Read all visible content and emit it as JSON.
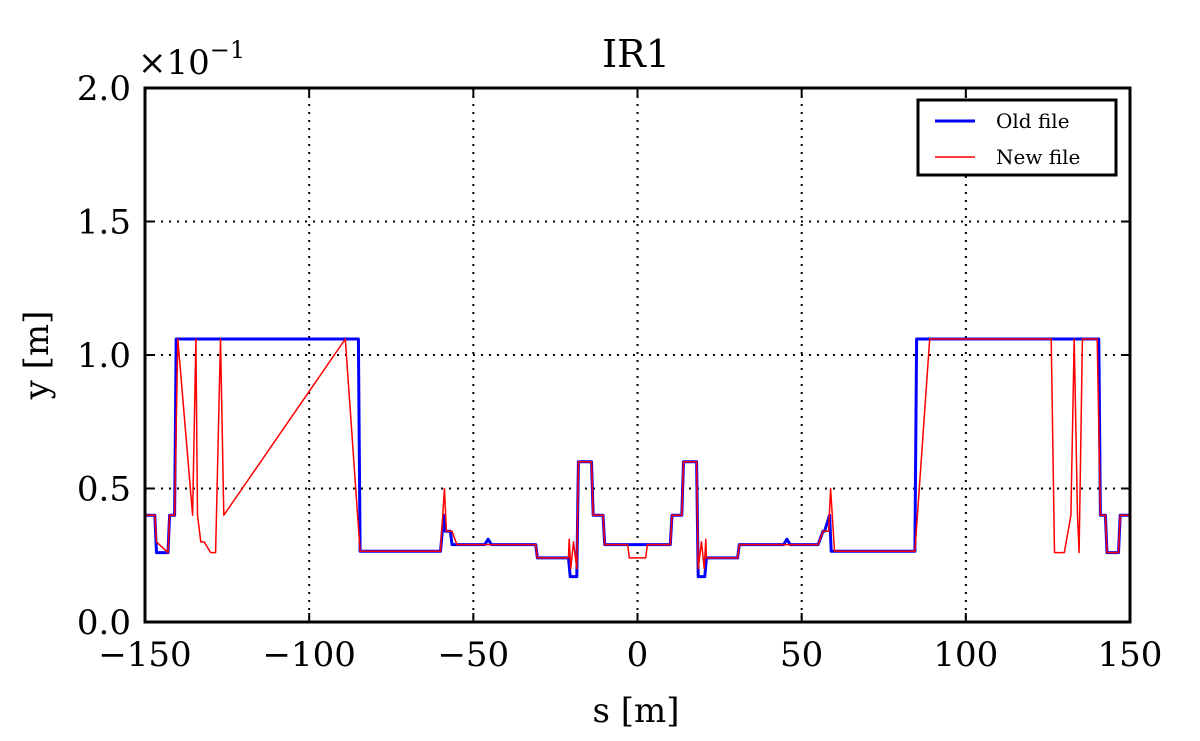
{
  "chart_data": {
    "type": "line",
    "title": "IR1",
    "xlabel": "s [m]",
    "ylabel": "y [m]",
    "y_multiplier": "×10",
    "y_multiplier_exp": "−1",
    "xlim": [
      -150,
      150
    ],
    "ylim": [
      0.0,
      2.0
    ],
    "x_ticks": [
      -150,
      -100,
      -50,
      0,
      50,
      100,
      150
    ],
    "x_tick_labels": [
      "−150",
      "−100",
      "−50",
      "0",
      "50",
      "100",
      "150"
    ],
    "y_ticks": [
      0.0,
      0.5,
      1.0,
      1.5,
      2.0
    ],
    "y_tick_labels": [
      "0.0",
      "0.5",
      "1.0",
      "1.5",
      "2.0"
    ],
    "grid": true,
    "legend_position": "top-right",
    "series": [
      {
        "name": "Old file",
        "color": "#0000ff",
        "x": [
          -150,
          -147,
          -146.5,
          -143,
          -142.5,
          -141,
          -140.5,
          -85,
          -84.5,
          -60,
          -59,
          -58.5,
          -57,
          -56.5,
          -55,
          -54.5,
          -46.5,
          -45.5,
          -44.5,
          -31,
          -30.5,
          -21,
          -20.5,
          -18.5,
          -18,
          -14,
          -13.5,
          -10.5,
          -10,
          10,
          10.5,
          13.5,
          14,
          18,
          18.5,
          20.5,
          21,
          30.5,
          31,
          44.5,
          45.5,
          46.5,
          54.5,
          55,
          56.5,
          57,
          58.5,
          59,
          60,
          84.5,
          85,
          140.5,
          141,
          142.5,
          143,
          146.5,
          147,
          150
        ],
        "y": [
          0.4,
          0.4,
          0.26,
          0.26,
          0.4,
          0.4,
          1.06,
          1.06,
          0.265,
          0.265,
          0.4,
          0.34,
          0.34,
          0.29,
          0.29,
          0.29,
          0.29,
          0.31,
          0.29,
          0.29,
          0.24,
          0.24,
          0.17,
          0.17,
          0.6,
          0.6,
          0.4,
          0.4,
          0.29,
          0.29,
          0.4,
          0.4,
          0.6,
          0.6,
          0.17,
          0.17,
          0.24,
          0.24,
          0.29,
          0.29,
          0.31,
          0.29,
          0.29,
          0.29,
          0.34,
          0.34,
          0.4,
          0.265,
          0.265,
          0.265,
          1.06,
          1.06,
          0.4,
          0.4,
          0.26,
          0.26,
          0.4,
          0.4
        ]
      },
      {
        "name": "New file",
        "color": "#ff0000",
        "x": [
          -150,
          -147,
          -146.5,
          -143,
          -142.5,
          -141,
          -140,
          -135.5,
          -134.5,
          -134,
          -133,
          -132,
          -130,
          -128.5,
          -127,
          -126,
          -89,
          -84.5,
          -60,
          -58.8,
          -58.2,
          -56.5,
          -55,
          -31,
          -30.5,
          -21,
          -20.8,
          -20.3,
          -19.5,
          -18.5,
          -18,
          -14,
          -13.5,
          -10.5,
          -10,
          -3,
          -2.5,
          2.5,
          3,
          10,
          10.5,
          13.5,
          14,
          18,
          18.5,
          19.5,
          20.3,
          20.8,
          21,
          30.5,
          31,
          55,
          56.5,
          58.2,
          58.8,
          60,
          84.5,
          89,
          126,
          127,
          128.5,
          130,
          132,
          133,
          134,
          134.5,
          135.5,
          140,
          141,
          142.5,
          143,
          146.5,
          147,
          150
        ],
        "y": [
          0.4,
          0.4,
          0.3,
          0.26,
          0.4,
          0.4,
          1.06,
          0.4,
          1.06,
          0.4,
          0.3,
          0.3,
          0.26,
          0.26,
          1.06,
          0.4,
          1.06,
          0.265,
          0.265,
          0.5,
          0.34,
          0.34,
          0.29,
          0.29,
          0.24,
          0.24,
          0.31,
          0.2,
          0.3,
          0.2,
          0.6,
          0.6,
          0.4,
          0.4,
          0.29,
          0.29,
          0.24,
          0.24,
          0.29,
          0.29,
          0.4,
          0.4,
          0.6,
          0.6,
          0.2,
          0.3,
          0.2,
          0.31,
          0.24,
          0.24,
          0.29,
          0.29,
          0.34,
          0.34,
          0.5,
          0.265,
          0.265,
          1.06,
          1.06,
          0.26,
          0.26,
          0.26,
          0.4,
          1.06,
          0.4,
          0.26,
          1.06,
          1.06,
          0.4,
          0.4,
          0.26,
          0.26,
          0.4,
          0.4
        ]
      }
    ]
  }
}
